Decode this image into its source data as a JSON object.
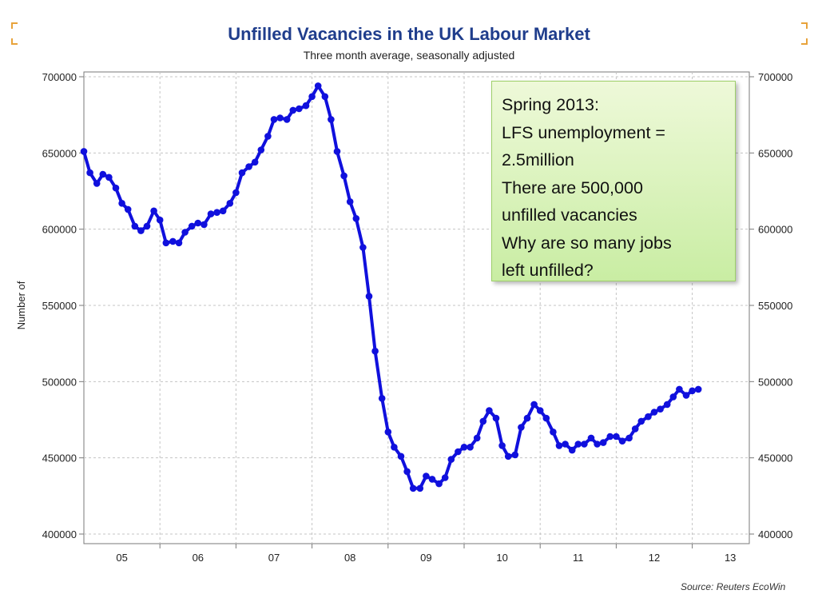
{
  "title": "Unfilled Vacancies in the UK Labour Market",
  "subtitle": "Three month average, seasonally adjusted",
  "source": "Source: Reuters EcoWin",
  "annotation": {
    "lines": [
      "Spring 2013:",
      "LFS unemployment =",
      "2.5million",
      "There are 500,000",
      "unfilled vacancies",
      "Why are so many jobs",
      "left unfilled?"
    ]
  },
  "colors": {
    "title": "#1f3d8c",
    "line": "#1010dd",
    "annotation_fill": "#d4f0b0",
    "annotation_border": "#9ecf6a",
    "corner_accent": "#e8a33b"
  },
  "chart_data": {
    "type": "line",
    "title": "Unfilled Vacancies in the UK Labour Market",
    "subtitle": "Three month average, seasonally adjusted",
    "ylabel": "Number of",
    "xlabel": "",
    "ylim": [
      400000,
      700000
    ],
    "yticks": [
      "400000",
      "450000",
      "500000",
      "550000",
      "600000",
      "650000",
      "700000"
    ],
    "xlim": [
      2004.5,
      2013.25
    ],
    "xticks": [
      {
        "label": "05",
        "x": 2005.0
      },
      {
        "label": "06",
        "x": 2006.0
      },
      {
        "label": "07",
        "x": 2007.0
      },
      {
        "label": "08",
        "x": 2008.0
      },
      {
        "label": "09",
        "x": 2009.0
      },
      {
        "label": "10",
        "x": 2010.0
      },
      {
        "label": "11",
        "x": 2011.0
      },
      {
        "label": "12",
        "x": 2012.0
      },
      {
        "label": "13",
        "x": 2013.0
      }
    ],
    "grid": true,
    "y_axis_both_sides": true,
    "series": [
      {
        "values": [
          [
            2004.5,
            651000
          ],
          [
            2004.58,
            637000
          ],
          [
            2004.67,
            630000
          ],
          [
            2004.75,
            636000
          ],
          [
            2004.83,
            634000
          ],
          [
            2004.92,
            627000
          ],
          [
            2005.0,
            617000
          ],
          [
            2005.08,
            613000
          ],
          [
            2005.17,
            602000
          ],
          [
            2005.25,
            599000
          ],
          [
            2005.33,
            602000
          ],
          [
            2005.42,
            612000
          ],
          [
            2005.5,
            606000
          ],
          [
            2005.58,
            591000
          ],
          [
            2005.67,
            592000
          ],
          [
            2005.75,
            591000
          ],
          [
            2005.83,
            598000
          ],
          [
            2005.92,
            602000
          ],
          [
            2006.0,
            604000
          ],
          [
            2006.08,
            603000
          ],
          [
            2006.17,
            610000
          ],
          [
            2006.25,
            611000
          ],
          [
            2006.33,
            612000
          ],
          [
            2006.42,
            617000
          ],
          [
            2006.5,
            624000
          ],
          [
            2006.58,
            637000
          ],
          [
            2006.67,
            641000
          ],
          [
            2006.75,
            644000
          ],
          [
            2006.83,
            652000
          ],
          [
            2006.92,
            661000
          ],
          [
            2007.0,
            672000
          ],
          [
            2007.08,
            673000
          ],
          [
            2007.17,
            672000
          ],
          [
            2007.25,
            678000
          ],
          [
            2007.33,
            679000
          ],
          [
            2007.42,
            681000
          ],
          [
            2007.5,
            687000
          ],
          [
            2007.58,
            694000
          ],
          [
            2007.67,
            687000
          ],
          [
            2007.75,
            672000
          ],
          [
            2007.83,
            651000
          ],
          [
            2007.92,
            635000
          ],
          [
            2008.0,
            618000
          ],
          [
            2008.08,
            607000
          ],
          [
            2008.17,
            588000
          ],
          [
            2008.25,
            556000
          ],
          [
            2008.33,
            520000
          ],
          [
            2008.42,
            489000
          ],
          [
            2008.5,
            467000
          ],
          [
            2008.58,
            457000
          ],
          [
            2008.67,
            451000
          ],
          [
            2008.75,
            441000
          ],
          [
            2008.83,
            430000
          ],
          [
            2008.92,
            430000
          ],
          [
            2009.0,
            438000
          ],
          [
            2009.08,
            436000
          ],
          [
            2009.17,
            433000
          ],
          [
            2009.25,
            437000
          ],
          [
            2009.33,
            449000
          ],
          [
            2009.42,
            454000
          ],
          [
            2009.5,
            457000
          ],
          [
            2009.58,
            457000
          ],
          [
            2009.67,
            463000
          ],
          [
            2009.75,
            474000
          ],
          [
            2009.83,
            481000
          ],
          [
            2009.92,
            476000
          ],
          [
            2010.0,
            458000
          ],
          [
            2010.08,
            451000
          ],
          [
            2010.17,
            452000
          ],
          [
            2010.25,
            470000
          ],
          [
            2010.33,
            476000
          ],
          [
            2010.42,
            485000
          ],
          [
            2010.5,
            481000
          ],
          [
            2010.58,
            476000
          ],
          [
            2010.67,
            467000
          ],
          [
            2010.75,
            458000
          ],
          [
            2010.83,
            459000
          ],
          [
            2010.92,
            455000
          ],
          [
            2011.0,
            459000
          ],
          [
            2011.08,
            459000
          ],
          [
            2011.17,
            463000
          ],
          [
            2011.25,
            459000
          ],
          [
            2011.33,
            460000
          ],
          [
            2011.42,
            464000
          ],
          [
            2011.5,
            464000
          ],
          [
            2011.58,
            461000
          ],
          [
            2011.67,
            463000
          ],
          [
            2011.75,
            469000
          ],
          [
            2011.83,
            474000
          ],
          [
            2011.92,
            477000
          ],
          [
            2012.0,
            480000
          ],
          [
            2012.08,
            482000
          ],
          [
            2012.17,
            485000
          ],
          [
            2012.25,
            490000
          ],
          [
            2012.33,
            495000
          ],
          [
            2012.42,
            491000
          ],
          [
            2012.5,
            494000
          ],
          [
            2012.58,
            495000
          ]
        ]
      }
    ]
  }
}
